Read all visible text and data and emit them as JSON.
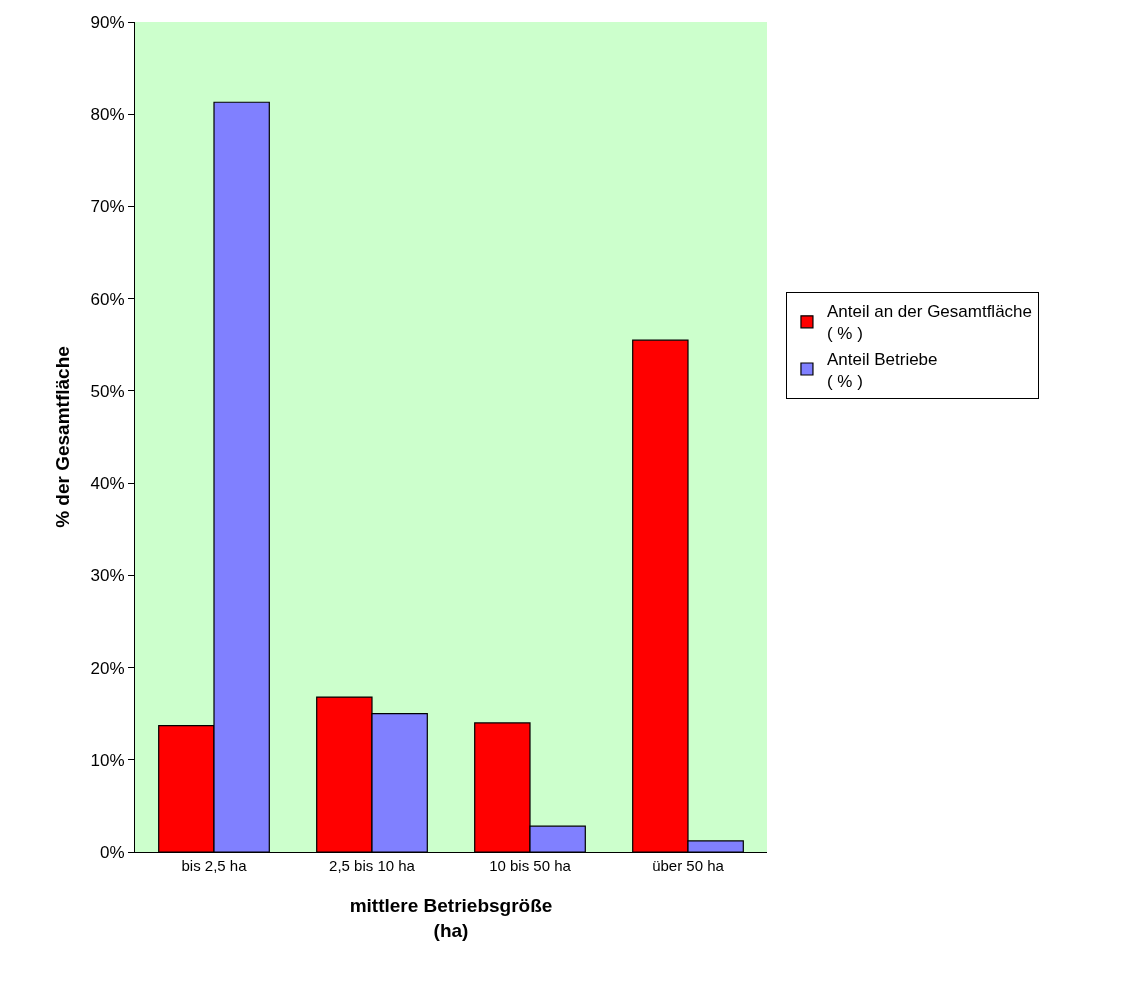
{
  "chart_data": {
    "type": "bar",
    "xlabel": "mittlere Betriebsgröße\n(ha)",
    "ylabel": "% der Gesamtfläche",
    "categories": [
      "bis 2,5 ha",
      "2,5 bis 10 ha",
      "10 bis 50 ha",
      "über 50 ha"
    ],
    "series": [
      {
        "name": "Anteil an der Gesamtfläche\n( % )",
        "color": "#ff0000",
        "values": [
          13.7,
          16.8,
          14.0,
          55.5
        ]
      },
      {
        "name": "Anteil Betriebe\n( % )",
        "color": "#8080ff",
        "values": [
          81.3,
          15.0,
          2.8,
          1.2
        ]
      }
    ],
    "ylim": [
      0,
      90
    ],
    "yticks": [
      {
        "value": 0,
        "label": "0%"
      },
      {
        "value": 10,
        "label": "10%"
      },
      {
        "value": 20,
        "label": "20%"
      },
      {
        "value": 30,
        "label": "30%"
      },
      {
        "value": 40,
        "label": "40%"
      },
      {
        "value": 50,
        "label": "50%"
      },
      {
        "value": 60,
        "label": "60%"
      },
      {
        "value": 70,
        "label": "70%"
      },
      {
        "value": 80,
        "label": "80%"
      },
      {
        "value": 90,
        "label": "90%"
      }
    ],
    "grid": false,
    "legend": "right"
  }
}
